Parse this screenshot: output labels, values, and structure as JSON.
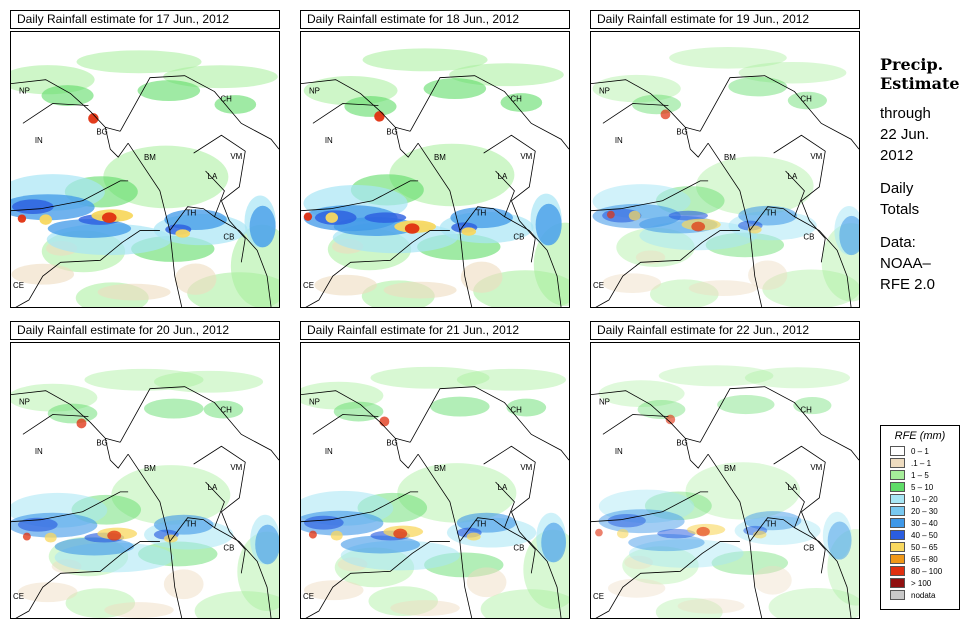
{
  "panels": [
    {
      "title": "Daily Rainfall estimate for  17 Jun., 2012",
      "intensity": 1.0
    },
    {
      "title": "Daily Rainfall estimate for  18 Jun., 2012",
      "intensity": 1.0
    },
    {
      "title": "Daily Rainfall estimate for  19 Jun., 2012",
      "intensity": 0.75
    },
    {
      "title": "Daily Rainfall estimate for  20 Jun., 2012",
      "intensity": 0.8
    },
    {
      "title": "Daily Rainfall estimate for  21 Jun., 2012",
      "intensity": 0.8
    },
    {
      "title": "Daily Rainfall estimate for  22 Jun., 2012",
      "intensity": 0.65
    }
  ],
  "map_labels": [
    "NP",
    "IN",
    "BG",
    "CH",
    "BM",
    "VM",
    "LA",
    "TH",
    "CB",
    "CE"
  ],
  "sidebar": {
    "heading_line1": "Precip.",
    "heading_line2": "Estimate",
    "through": "through",
    "date_line1": "22 Jun.",
    "date_line2": "2012",
    "daily_line1": "Daily",
    "daily_line2": "Totals",
    "data_line1": "Data:",
    "data_line2": "NOAA–",
    "data_line3": "RFE 2.0"
  },
  "legend": {
    "title": "RFE (mm)",
    "items": [
      {
        "label": "0 – 1",
        "color": "#ffffff"
      },
      {
        "label": ".1 – 1",
        "color": "#eedcc0"
      },
      {
        "label": "1 – 5",
        "color": "#a6ee9a"
      },
      {
        "label": "5 – 10",
        "color": "#5fdc68"
      },
      {
        "label": "10 – 20",
        "color": "#a8e6f5"
      },
      {
        "label": "20 – 30",
        "color": "#78c8f0"
      },
      {
        "label": "30 – 40",
        "color": "#3f98e8"
      },
      {
        "label": "40 – 50",
        "color": "#2a5de0"
      },
      {
        "label": "50 – 65",
        "color": "#f8d860"
      },
      {
        "label": "65 – 80",
        "color": "#f09818"
      },
      {
        "label": "80 – 100",
        "color": "#e03010"
      },
      {
        "label": "> 100",
        "color": "#901010"
      },
      {
        "label": "nodata",
        "color": "#c8c8c8"
      }
    ]
  }
}
